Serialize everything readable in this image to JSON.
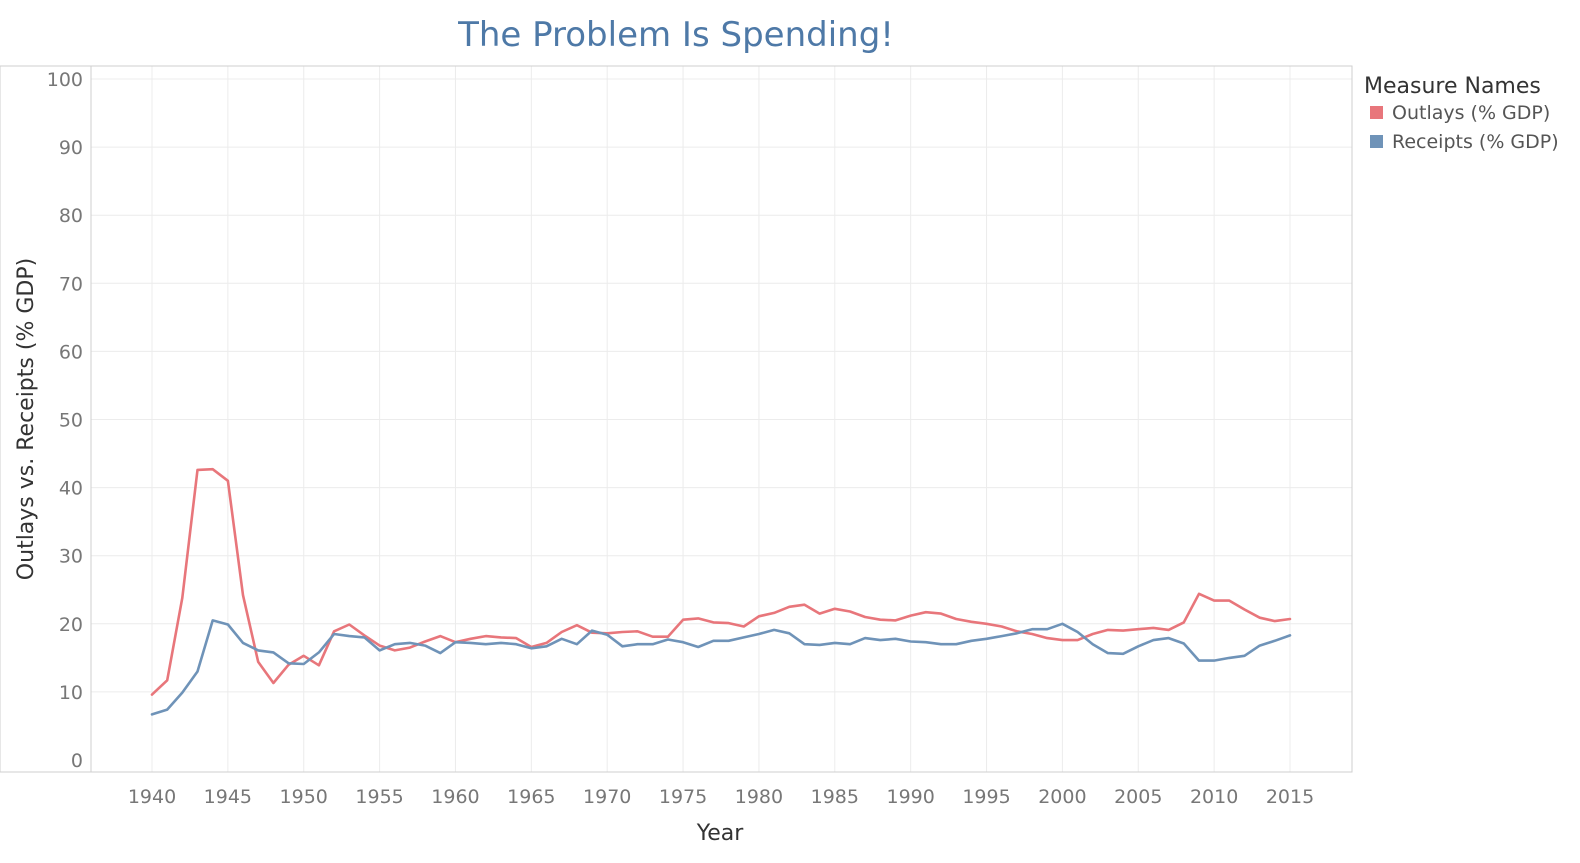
{
  "chart_data": {
    "type": "line",
    "title": "The Problem Is Spending!",
    "xlabel": "Year",
    "ylabel": "Outlays vs. Receipts (% GDP)",
    "xlim": [
      1936,
      2019
    ],
    "ylim": [
      0,
      100
    ],
    "x_ticks": [
      1940,
      1945,
      1950,
      1955,
      1960,
      1965,
      1970,
      1975,
      1980,
      1985,
      1990,
      1995,
      2000,
      2005,
      2010,
      2015
    ],
    "y_ticks": [
      0,
      10,
      20,
      30,
      40,
      50,
      60,
      70,
      80,
      90,
      100
    ],
    "grid": true,
    "legend": {
      "title": "Measure Names",
      "position": "right"
    },
    "x": [
      1940,
      1941,
      1942,
      1943,
      1944,
      1945,
      1946,
      1947,
      1948,
      1949,
      1950,
      1951,
      1952,
      1953,
      1954,
      1955,
      1956,
      1957,
      1958,
      1959,
      1960,
      1961,
      1962,
      1963,
      1964,
      1965,
      1966,
      1967,
      1968,
      1969,
      1970,
      1971,
      1972,
      1973,
      1974,
      1975,
      1976,
      1977,
      1978,
      1979,
      1980,
      1981,
      1982,
      1983,
      1984,
      1985,
      1986,
      1987,
      1988,
      1989,
      1990,
      1991,
      1992,
      1993,
      1994,
      1995,
      1996,
      1997,
      1998,
      1999,
      2000,
      2001,
      2002,
      2003,
      2004,
      2005,
      2006,
      2007,
      2008,
      2009,
      2010,
      2011,
      2012,
      2013,
      2014,
      2015
    ],
    "series": [
      {
        "name": "Outlays (% GDP)",
        "color": "#e8767b",
        "values": [
          9.6,
          11.7,
          23.8,
          42.6,
          42.7,
          41.0,
          24.2,
          14.4,
          11.3,
          14.0,
          15.3,
          13.9,
          18.9,
          19.9,
          18.3,
          16.8,
          16.1,
          16.5,
          17.4,
          18.2,
          17.3,
          17.8,
          18.2,
          18.0,
          17.9,
          16.6,
          17.2,
          18.8,
          19.8,
          18.7,
          18.6,
          18.8,
          18.9,
          18.1,
          18.1,
          20.6,
          20.8,
          20.2,
          20.1,
          19.6,
          21.1,
          21.6,
          22.5,
          22.8,
          21.5,
          22.2,
          21.8,
          21.0,
          20.6,
          20.5,
          21.2,
          21.7,
          21.5,
          20.7,
          20.3,
          20.0,
          19.6,
          18.9,
          18.5,
          17.9,
          17.6,
          17.6,
          18.5,
          19.1,
          19.0,
          19.2,
          19.4,
          19.1,
          20.2,
          24.4,
          23.4,
          23.4,
          22.1,
          20.9,
          20.4,
          20.7
        ]
      },
      {
        "name": "Receipts (% GDP)",
        "color": "#6f93b8",
        "values": [
          6.7,
          7.4,
          9.9,
          13.0,
          20.5,
          19.9,
          17.2,
          16.1,
          15.8,
          14.2,
          14.1,
          15.8,
          18.5,
          18.2,
          18.0,
          16.1,
          17.0,
          17.2,
          16.8,
          15.7,
          17.3,
          17.2,
          17.0,
          17.2,
          17.0,
          16.4,
          16.7,
          17.8,
          17.0,
          19.0,
          18.4,
          16.7,
          17.0,
          17.0,
          17.7,
          17.3,
          16.6,
          17.5,
          17.5,
          18.0,
          18.5,
          19.1,
          18.6,
          17.0,
          16.9,
          17.2,
          17.0,
          17.9,
          17.6,
          17.8,
          17.4,
          17.3,
          17.0,
          17.0,
          17.5,
          17.8,
          18.2,
          18.6,
          19.2,
          19.2,
          20.0,
          18.8,
          17.0,
          15.7,
          15.6,
          16.7,
          17.6,
          17.9,
          17.1,
          14.6,
          14.6,
          15.0,
          15.3,
          16.8,
          17.5,
          18.3
        ]
      }
    ]
  }
}
